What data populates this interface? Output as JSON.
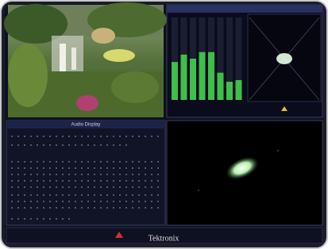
{
  "header": {
    "title": "Audio Display"
  },
  "meters": {
    "levels": [
      46,
      55,
      50,
      58,
      58,
      33,
      22,
      24
    ],
    "range": [
      0,
      100
    ],
    "color": "#3fbf4a"
  },
  "footer": {
    "brand": "Tektronix"
  }
}
